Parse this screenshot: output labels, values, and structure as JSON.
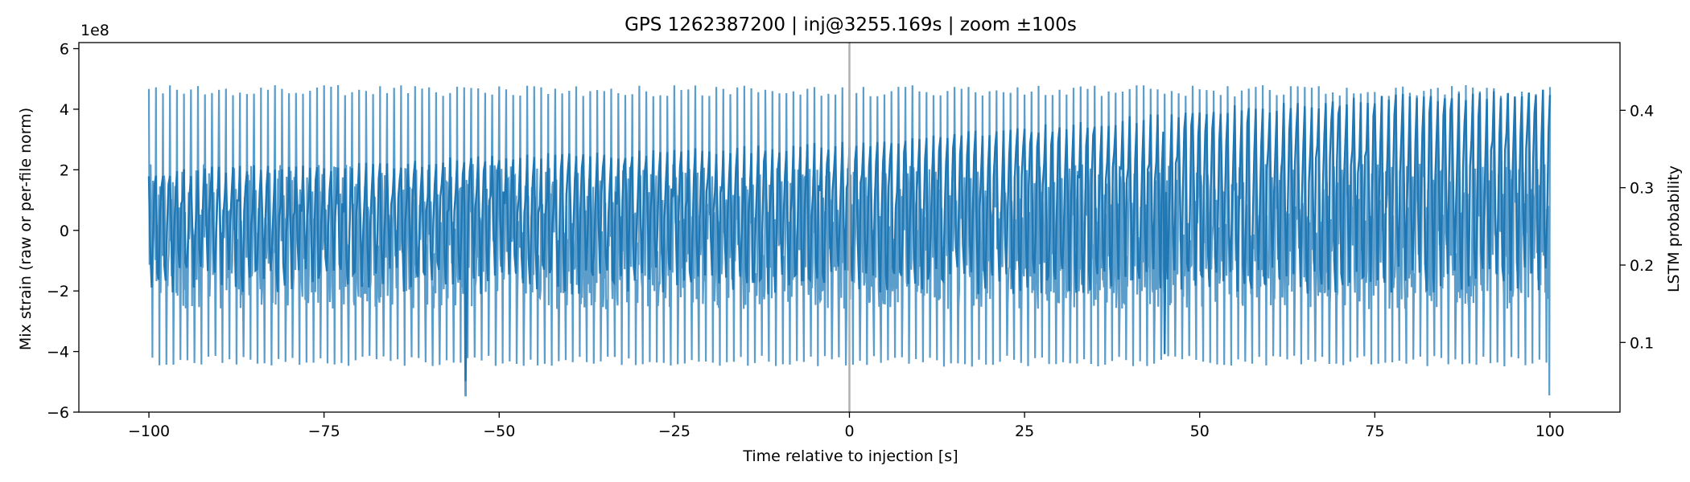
{
  "chart_data": {
    "type": "line",
    "title": "GPS 1262387200 | inj@3255.169s | zoom ±100s",
    "xlabel": "Time relative to injection [s]",
    "ylabel": "Mix strain (raw or per-file norm)",
    "ylabel_right": "LSTM probability",
    "y_offset_text": "1e8",
    "xlim": [
      -110,
      110
    ],
    "ylim": [
      -600000000.0,
      620000000.0
    ],
    "ylim_right": [
      0.01,
      0.4875
    ],
    "x_ticks": [
      -100,
      -75,
      -50,
      -25,
      0,
      25,
      50,
      75,
      100
    ],
    "x_tick_labels": [
      "−100",
      "−75",
      "−50",
      "−25",
      "0",
      "25",
      "50",
      "75",
      "100"
    ],
    "y_ticks": [
      -600000000.0,
      -400000000.0,
      -200000000.0,
      0,
      200000000.0,
      400000000.0,
      600000000.0
    ],
    "y_tick_labels": [
      "−6",
      "−4",
      "−2",
      "0",
      "2",
      "4",
      "6"
    ],
    "y_ticks_right": [
      0.1,
      0.2,
      0.3,
      0.4
    ],
    "y_tick_labels_right": [
      "0.1",
      "0.2",
      "0.3",
      "0.4"
    ],
    "injection_marker_x": 0,
    "grid": false,
    "series": [
      {
        "role": "strain",
        "axis": "left",
        "color": "#5b9dcb",
        "x_range": [
          -100,
          100
        ],
        "approx_envelope": {
          "upper_peaks": 480000000.0,
          "lower_troughs": -450000000.0,
          "dense_band": [
            -260000000.0,
            220000000.0
          ]
        },
        "notable_points": [
          {
            "x": -54.8,
            "y": -545000000.0
          },
          {
            "x": 99.9,
            "y": -545000000.0
          }
        ]
      },
      {
        "role": "probability",
        "axis": "right",
        "color": "#1f77b4",
        "x_range": [
          -100,
          100
        ],
        "points": [
          [
            -100,
            0.32
          ],
          [
            -87.5,
            0.33
          ],
          [
            -75,
            0.33
          ],
          [
            -62.5,
            0.335
          ],
          [
            -50,
            0.345
          ],
          [
            -37.5,
            0.345
          ],
          [
            -25,
            0.35
          ],
          [
            -12.5,
            0.355
          ],
          [
            0,
            0.36
          ],
          [
            12.5,
            0.37
          ],
          [
            25,
            0.38
          ],
          [
            37.5,
            0.39
          ],
          [
            50,
            0.405
          ],
          [
            62.5,
            0.41
          ],
          [
            75,
            0.42
          ],
          [
            87.5,
            0.425
          ],
          [
            100,
            0.43
          ]
        ],
        "approx_trough_level": 0.18,
        "notable_points": [
          {
            "x": -54.8,
            "y": 0.05
          },
          {
            "x": 45.0,
            "y": 0.085
          }
        ]
      }
    ]
  }
}
